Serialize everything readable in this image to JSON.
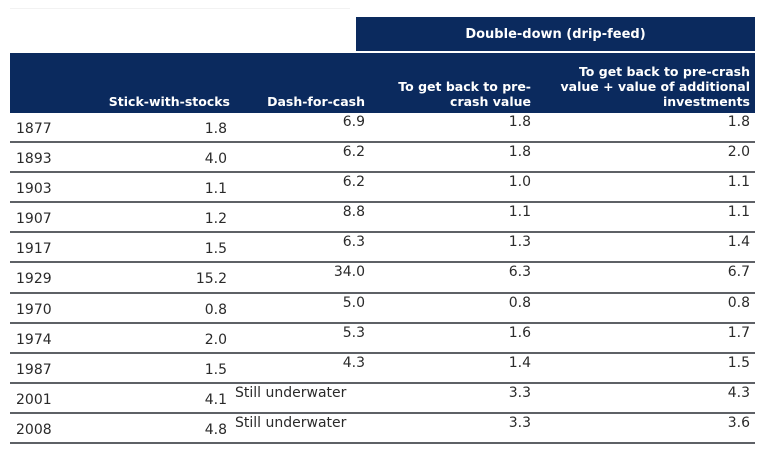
{
  "table": {
    "group_header": "Double-down (drip-feed)",
    "columns": [
      {
        "key": "year",
        "label": ""
      },
      {
        "key": "stick_with_stocks",
        "label": "Stick-with-stocks"
      },
      {
        "key": "dash_for_cash",
        "label": "Dash-for-cash"
      },
      {
        "key": "dd_pre_crash",
        "label": "To get back to pre-crash value",
        "label_lines": [
          "To get back to pre-",
          "crash value"
        ]
      },
      {
        "key": "dd_pre_crash_plus",
        "label": "To get back to pre-crash value + value of additional investments",
        "label_lines": [
          "To get back to pre-crash",
          "value + value of additional",
          "investments"
        ]
      }
    ],
    "rows": [
      {
        "year": "1877",
        "stick_with_stocks": "1.8",
        "dash_for_cash": "6.9",
        "dd_pre_crash": "1.8",
        "dd_pre_crash_plus": "1.8"
      },
      {
        "year": "1893",
        "stick_with_stocks": "4.0",
        "dash_for_cash": "6.2",
        "dd_pre_crash": "1.8",
        "dd_pre_crash_plus": "2.0"
      },
      {
        "year": "1903",
        "stick_with_stocks": "1.1",
        "dash_for_cash": "6.2",
        "dd_pre_crash": "1.0",
        "dd_pre_crash_plus": "1.1"
      },
      {
        "year": "1907",
        "stick_with_stocks": "1.2",
        "dash_for_cash": "8.8",
        "dd_pre_crash": "1.1",
        "dd_pre_crash_plus": "1.1"
      },
      {
        "year": "1917",
        "stick_with_stocks": "1.5",
        "dash_for_cash": "6.3",
        "dd_pre_crash": "1.3",
        "dd_pre_crash_plus": "1.4"
      },
      {
        "year": "1929",
        "stick_with_stocks": "15.2",
        "dash_for_cash": "34.0",
        "dd_pre_crash": "6.3",
        "dd_pre_crash_plus": "6.7"
      },
      {
        "year": "1970",
        "stick_with_stocks": "0.8",
        "dash_for_cash": "5.0",
        "dd_pre_crash": "0.8",
        "dd_pre_crash_plus": "0.8"
      },
      {
        "year": "1974",
        "stick_with_stocks": "2.0",
        "dash_for_cash": "5.3",
        "dd_pre_crash": "1.6",
        "dd_pre_crash_plus": "1.7"
      },
      {
        "year": "1987",
        "stick_with_stocks": "1.5",
        "dash_for_cash": "4.3",
        "dd_pre_crash": "1.4",
        "dd_pre_crash_plus": "1.5"
      },
      {
        "year": "2001",
        "stick_with_stocks": "4.1",
        "dash_for_cash": "Still underwater",
        "dd_pre_crash": "3.3",
        "dd_pre_crash_plus": "4.3"
      },
      {
        "year": "2008",
        "stick_with_stocks": "4.8",
        "dash_for_cash": "Still underwater",
        "dd_pre_crash": "3.3",
        "dd_pre_crash_plus": "3.6"
      }
    ]
  },
  "colors": {
    "header_bg": "#0b2a5e",
    "header_text": "#ffffff",
    "row_separator": "#5e6166",
    "body_text": "#2a2a2a"
  }
}
